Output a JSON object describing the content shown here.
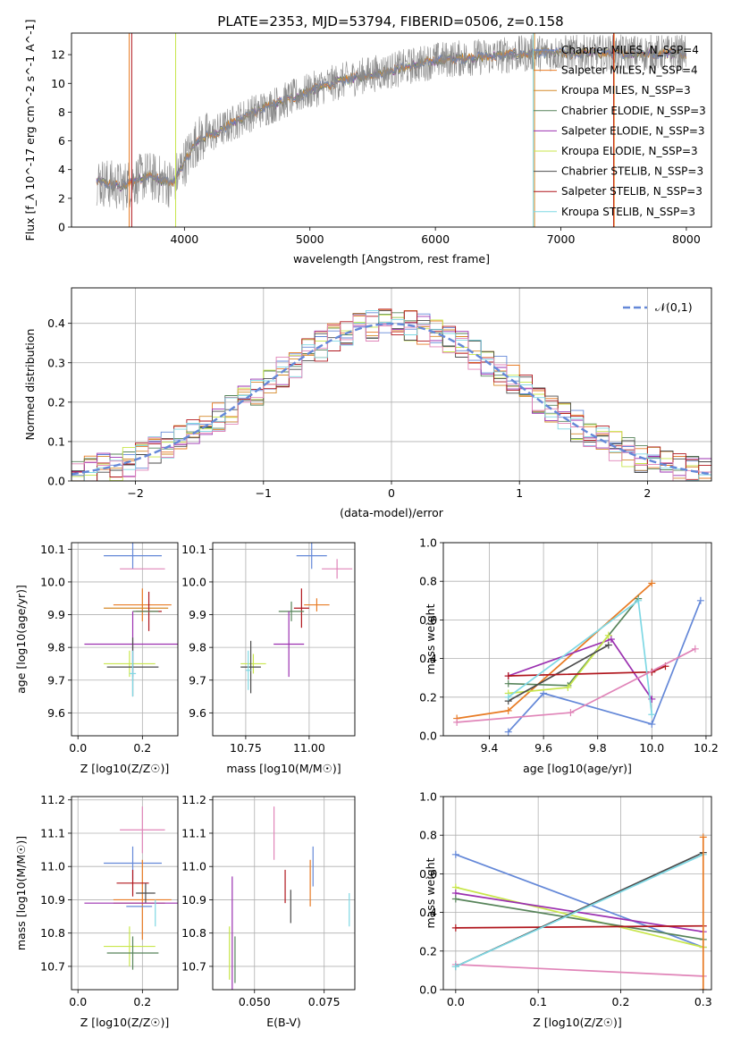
{
  "title": "PLATE=2353, MJD=53794, FIBERID=0506, z=0.158",
  "colors": {
    "c0": "#6488d8",
    "c1": "#e87b24",
    "c2": "#d58a2a",
    "c3": "#57845a",
    "c4": "#9b30b0",
    "c5": "#c8e64b",
    "c6": "#4b4b4b",
    "c7": "#b0161d",
    "c8": "#7fd8e4",
    "c9": "#e084b8"
  },
  "chart_data": [
    {
      "id": "spectrum",
      "type": "line",
      "xlabel": "wavelength [Angstrom, rest frame]",
      "ylabel": "Flux [f_λ 10^-17 erg cm^-2 s^-1 A^-1]",
      "xlim": [
        3100,
        8200
      ],
      "ylim": [
        0,
        13.5
      ],
      "xticks": [
        4000,
        5000,
        6000,
        7000,
        8000
      ],
      "yticks": [
        0,
        2,
        4,
        6,
        8,
        10,
        12
      ],
      "legend_position": "upper-right",
      "continuum": {
        "x": [
          3300,
          3500,
          3700,
          3900,
          4100,
          4300,
          4500,
          4800,
          5100,
          5400,
          5700,
          6000,
          6300,
          6600,
          6800
        ],
        "y": [
          3.2,
          2.8,
          3.6,
          3.0,
          6.0,
          6.8,
          7.8,
          8.8,
          9.8,
          10.5,
          11.0,
          11.6,
          11.8,
          12.0,
          12.1
        ]
      },
      "series": [
        {
          "name": "Chabrier MILES, N_SSP=4",
          "color_key": "c0"
        },
        {
          "name": "Salpeter MILES, N_SSP=4",
          "color_key": "c1"
        },
        {
          "name": "Kroupa MILES, N_SSP=3",
          "color_key": "c2"
        },
        {
          "name": "Chabrier ELODIE, N_SSP=3",
          "color_key": "c3"
        },
        {
          "name": "Salpeter ELODIE, N_SSP=3",
          "color_key": "c4"
        },
        {
          "name": "Kroupa ELODIE, N_SSP=3",
          "color_key": "c5"
        },
        {
          "name": "Chabrier STELIB, N_SSP=3",
          "color_key": "c6"
        },
        {
          "name": "Salpeter STELIB, N_SSP=3",
          "color_key": "c7"
        },
        {
          "name": "Kroupa STELIB, N_SSP=3",
          "color_key": "c8"
        }
      ]
    },
    {
      "id": "residuals",
      "type": "line",
      "xlabel": "(data-model)/error",
      "ylabel": "Normed distribution",
      "xlim": [
        -2.5,
        2.5
      ],
      "ylim": [
        0,
        0.49
      ],
      "xticks": [
        -2,
        -1,
        0,
        1,
        2
      ],
      "yticks": [
        0.0,
        0.1,
        0.2,
        0.3,
        0.4
      ],
      "grid": true,
      "legend_position": "upper-right",
      "legend": "𝒩(0,1)",
      "gaussian": {
        "mean": 0,
        "sigma": 1,
        "color_key": "c0"
      },
      "hist_bin_width": 0.1
    },
    {
      "id": "age-vs-z",
      "type": "scatter",
      "xlabel": "Z [log10(Z/Z☉)]",
      "ylabel": "age [log10(age/yr)]",
      "xlim": [
        -0.02,
        0.31
      ],
      "ylim": [
        9.53,
        10.12
      ],
      "xticks": [
        0.0,
        0.2
      ],
      "yticks": [
        9.6,
        9.7,
        9.8,
        9.9,
        10.0,
        10.1
      ],
      "grid": true,
      "points": [
        {
          "x": 0.17,
          "y": 10.08,
          "xerr": 0.09,
          "yerr": 0.04,
          "c": "c0"
        },
        {
          "x": 0.2,
          "y": 10.04,
          "xerr": 0.07,
          "yerr": 0.0,
          "c": "c9"
        },
        {
          "x": 0.2,
          "y": 9.93,
          "xerr": 0.09,
          "yerr": 0.05,
          "c": "c1"
        },
        {
          "x": 0.18,
          "y": 9.92,
          "xerr": 0.1,
          "yerr": 0.0,
          "c": "c2"
        },
        {
          "x": 0.22,
          "y": 9.91,
          "xerr": 0.04,
          "yerr": 0.06,
          "c": "c7"
        },
        {
          "x": 0.21,
          "y": 9.91,
          "xerr": 0.04,
          "yerr": 0.0,
          "c": "c3"
        },
        {
          "x": 0.17,
          "y": 9.81,
          "xerr": 0.15,
          "yerr": 0.1,
          "c": "c4"
        },
        {
          "x": 0.16,
          "y": 9.75,
          "xerr": 0.08,
          "yerr": 0.04,
          "c": "c5"
        },
        {
          "x": 0.17,
          "y": 9.74,
          "xerr": 0.08,
          "yerr": 0.09,
          "c": "c6"
        },
        {
          "x": 0.17,
          "y": 9.72,
          "xerr": 0.01,
          "yerr": 0.07,
          "c": "c8"
        }
      ]
    },
    {
      "id": "age-vs-mass",
      "type": "scatter",
      "xlabel": "mass [log10(M/M☉)]",
      "ylabel": "",
      "xlim": [
        10.62,
        11.18
      ],
      "ylim": [
        9.53,
        10.12
      ],
      "xticks": [
        10.75,
        11.0
      ],
      "yticks": [
        9.6,
        9.7,
        9.8,
        9.9,
        10.0,
        10.1
      ],
      "grid": true,
      "points": [
        {
          "x": 11.01,
          "y": 10.08,
          "xerr": 0.06,
          "yerr": 0.04,
          "c": "c0"
        },
        {
          "x": 11.11,
          "y": 10.04,
          "xerr": 0.06,
          "yerr": 0.03,
          "c": "c9"
        },
        {
          "x": 11.03,
          "y": 9.93,
          "xerr": 0.05,
          "yerr": 0.02,
          "c": "c1"
        },
        {
          "x": 10.97,
          "y": 9.92,
          "xerr": 0.03,
          "yerr": 0.06,
          "c": "c7"
        },
        {
          "x": 10.93,
          "y": 9.91,
          "xerr": 0.05,
          "yerr": 0.03,
          "c": "c3"
        },
        {
          "x": 10.92,
          "y": 9.81,
          "xerr": 0.06,
          "yerr": 0.1,
          "c": "c4"
        },
        {
          "x": 10.78,
          "y": 9.75,
          "xerr": 0.05,
          "yerr": 0.03,
          "c": "c5"
        },
        {
          "x": 10.77,
          "y": 9.74,
          "xerr": 0.04,
          "yerr": 0.08,
          "c": "c6"
        },
        {
          "x": 10.76,
          "y": 9.73,
          "xerr": 0.01,
          "yerr": 0.06,
          "c": "c8"
        }
      ]
    },
    {
      "id": "weight-vs-age",
      "type": "line",
      "xlabel": "age [log10(age/yr)]",
      "ylabel": "mass weight",
      "xlim": [
        9.23,
        10.22
      ],
      "ylim": [
        0,
        1.0
      ],
      "xticks": [
        9.4,
        9.6,
        9.8,
        10.0,
        10.2
      ],
      "yticks": [
        0.0,
        0.2,
        0.4,
        0.6,
        0.8,
        1.0
      ],
      "grid": true,
      "series": [
        {
          "c": "c0",
          "x": [
            9.47,
            9.6,
            10.0,
            10.18
          ],
          "y": [
            0.02,
            0.22,
            0.06,
            0.7
          ]
        },
        {
          "c": "c1",
          "x": [
            9.28,
            9.47,
            10.0
          ],
          "y": [
            0.09,
            0.13,
            0.79
          ]
        },
        {
          "c": "c3",
          "x": [
            9.47,
            9.69,
            9.95
          ],
          "y": [
            0.27,
            0.26,
            0.71
          ]
        },
        {
          "c": "c4",
          "x": [
            9.47,
            9.85,
            10.0
          ],
          "y": [
            0.31,
            0.5,
            0.19
          ]
        },
        {
          "c": "c5",
          "x": [
            9.47,
            9.69,
            9.84
          ],
          "y": [
            0.22,
            0.25,
            0.52
          ]
        },
        {
          "c": "c6",
          "x": [
            9.47,
            9.84
          ],
          "y": [
            0.18,
            0.47
          ]
        },
        {
          "c": "c7",
          "x": [
            9.47,
            10.0,
            10.05
          ],
          "y": [
            0.31,
            0.33,
            0.36
          ]
        },
        {
          "c": "c8",
          "x": [
            9.47,
            9.95,
            10.0
          ],
          "y": [
            0.2,
            0.7,
            0.11
          ]
        },
        {
          "c": "c9",
          "x": [
            9.28,
            9.7,
            10.16
          ],
          "y": [
            0.07,
            0.12,
            0.45
          ]
        }
      ]
    },
    {
      "id": "mass-vs-z",
      "type": "scatter",
      "xlabel": "Z [log10(Z/Z☉)]",
      "ylabel": "mass [log10(M/M☉)]",
      "xlim": [
        -0.02,
        0.31
      ],
      "ylim": [
        10.63,
        11.21
      ],
      "xticks": [
        0.0,
        0.2
      ],
      "yticks": [
        10.7,
        10.8,
        10.9,
        11.0,
        11.1,
        11.2
      ],
      "grid": true,
      "points": [
        {
          "x": 0.2,
          "y": 11.11,
          "xerr": 0.07,
          "yerr": 0.07,
          "c": "c9"
        },
        {
          "x": 0.17,
          "y": 11.01,
          "xerr": 0.09,
          "yerr": 0.05,
          "c": "c0"
        },
        {
          "x": 0.2,
          "y": 10.9,
          "xerr": 0.09,
          "yerr": 0.12,
          "c": "c1"
        },
        {
          "x": 0.19,
          "y": 10.89,
          "xerr": 0.08,
          "yerr": 0.0,
          "c": "c2"
        },
        {
          "x": 0.17,
          "y": 10.95,
          "xerr": 0.05,
          "yerr": 0.04,
          "c": "c7"
        },
        {
          "x": 0.21,
          "y": 10.92,
          "xerr": 0.03,
          "yerr": 0.03,
          "c": "c6"
        },
        {
          "x": 0.17,
          "y": 10.89,
          "xerr": 0.15,
          "yerr": 0.0,
          "c": "c4"
        },
        {
          "x": 0.19,
          "y": 10.88,
          "xerr": 0.04,
          "yerr": 0.0,
          "c": "c0"
        },
        {
          "x": 0.24,
          "y": 10.86,
          "xerr": 0.0,
          "yerr": 0.04,
          "c": "c8"
        },
        {
          "x": 0.16,
          "y": 10.76,
          "xerr": 0.08,
          "yerr": 0.06,
          "c": "c5"
        },
        {
          "x": 0.17,
          "y": 10.74,
          "xerr": 0.08,
          "yerr": 0.05,
          "c": "c3"
        }
      ]
    },
    {
      "id": "mass-vs-ebv",
      "type": "scatter",
      "xlabel": "E(B-V)",
      "ylabel": "",
      "xlim": [
        0.035,
        0.086
      ],
      "ylim": [
        10.63,
        11.21
      ],
      "xticks": [
        0.05,
        0.075
      ],
      "yticks": [
        10.7,
        10.8,
        10.9,
        11.0,
        11.1,
        11.2
      ],
      "grid": true,
      "points": [
        {
          "x": 0.057,
          "y": 11.1,
          "xerr": 0.0,
          "yerr": 0.08,
          "c": "c9"
        },
        {
          "x": 0.071,
          "y": 11.0,
          "xerr": 0.0,
          "yerr": 0.06,
          "c": "c0"
        },
        {
          "x": 0.07,
          "y": 10.95,
          "xerr": 0.0,
          "yerr": 0.07,
          "c": "c1"
        },
        {
          "x": 0.061,
          "y": 10.94,
          "xerr": 0.0,
          "yerr": 0.05,
          "c": "c7"
        },
        {
          "x": 0.063,
          "y": 10.88,
          "xerr": 0.0,
          "yerr": 0.05,
          "c": "c6"
        },
        {
          "x": 0.042,
          "y": 10.8,
          "xerr": 0.0,
          "yerr": 0.17,
          "c": "c4"
        },
        {
          "x": 0.043,
          "y": 10.72,
          "xerr": 0.0,
          "yerr": 0.07,
          "c": "c3"
        },
        {
          "x": 0.041,
          "y": 10.74,
          "xerr": 0.0,
          "yerr": 0.08,
          "c": "c5"
        },
        {
          "x": 0.084,
          "y": 10.87,
          "xerr": 0.0,
          "yerr": 0.05,
          "c": "c8"
        }
      ]
    },
    {
      "id": "weight-vs-z",
      "type": "line",
      "xlabel": "Z [log10(Z/Z☉)]",
      "ylabel": "mass weight",
      "xlim": [
        -0.015,
        0.31
      ],
      "ylim": [
        0,
        1.0
      ],
      "xticks": [
        0.0,
        0.1,
        0.2,
        0.3
      ],
      "yticks": [
        0.0,
        0.2,
        0.4,
        0.6,
        0.8,
        1.0
      ],
      "grid": true,
      "series": [
        {
          "c": "c0",
          "x": [
            0.0,
            0.3
          ],
          "y": [
            0.7,
            0.22
          ]
        },
        {
          "c": "c5",
          "x": [
            0.0,
            0.3
          ],
          "y": [
            0.53,
            0.22
          ]
        },
        {
          "c": "c4",
          "x": [
            0.0,
            0.3
          ],
          "y": [
            0.5,
            0.3
          ]
        },
        {
          "c": "c3",
          "x": [
            0.0,
            0.3
          ],
          "y": [
            0.47,
            0.26
          ]
        },
        {
          "c": "c7",
          "x": [
            0.0,
            0.3
          ],
          "y": [
            0.32,
            0.33
          ]
        },
        {
          "c": "c9",
          "x": [
            0.0,
            0.3
          ],
          "y": [
            0.13,
            0.07
          ]
        },
        {
          "c": "c6",
          "x": [
            0.0,
            0.3
          ],
          "y": [
            0.12,
            0.71
          ]
        },
        {
          "c": "c8",
          "x": [
            0.0,
            0.3
          ],
          "y": [
            0.12,
            0.7
          ]
        },
        {
          "c": "c1",
          "x": [
            0.3,
            0.3
          ],
          "y": [
            0.0,
            0.79
          ]
        }
      ]
    }
  ]
}
